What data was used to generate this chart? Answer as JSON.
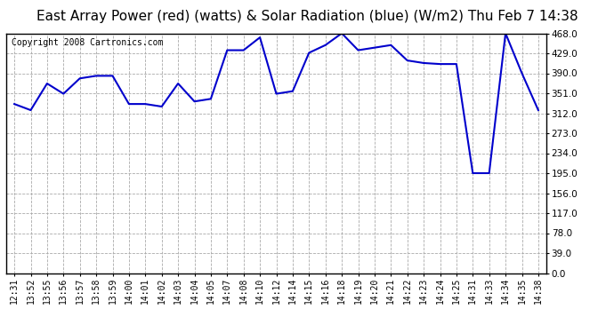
{
  "title": "East Array Power (red) (watts) & Solar Radiation (blue) (W/m2) Thu Feb 7 14:38",
  "copyright": "Copyright 2008 Cartronics.com",
  "line_color": "#0000cc",
  "background_color": "#ffffff",
  "plot_bg_color": "#ffffff",
  "grid_color": "#aaaaaa",
  "grid_style": "--",
  "ylim": [
    0.0,
    468.0
  ],
  "yticks": [
    0.0,
    39.0,
    78.0,
    117.0,
    156.0,
    195.0,
    234.0,
    273.0,
    312.0,
    351.0,
    390.0,
    429.0,
    468.0
  ],
  "x_labels": [
    "12:31",
    "13:52",
    "13:55",
    "13:56",
    "13:57",
    "13:58",
    "13:59",
    "14:00",
    "14:01",
    "14:02",
    "14:03",
    "14:04",
    "14:05",
    "14:07",
    "14:08",
    "14:10",
    "14:12",
    "14:14",
    "14:15",
    "14:16",
    "14:18",
    "14:19",
    "14:20",
    "14:21",
    "14:22",
    "14:23",
    "14:24",
    "14:25",
    "14:31",
    "14:33",
    "14:34",
    "14:35",
    "14:38"
  ],
  "y_values": [
    330,
    318,
    370,
    350,
    380,
    385,
    385,
    330,
    330,
    325,
    370,
    335,
    340,
    435,
    435,
    460,
    350,
    355,
    430,
    445,
    468,
    435,
    440,
    445,
    415,
    410,
    408,
    408,
    195,
    195,
    468,
    390,
    318
  ],
  "title_fontsize": 11,
  "copyright_fontsize": 7,
  "tick_fontsize": 7,
  "ytick_fontsize": 7.5
}
